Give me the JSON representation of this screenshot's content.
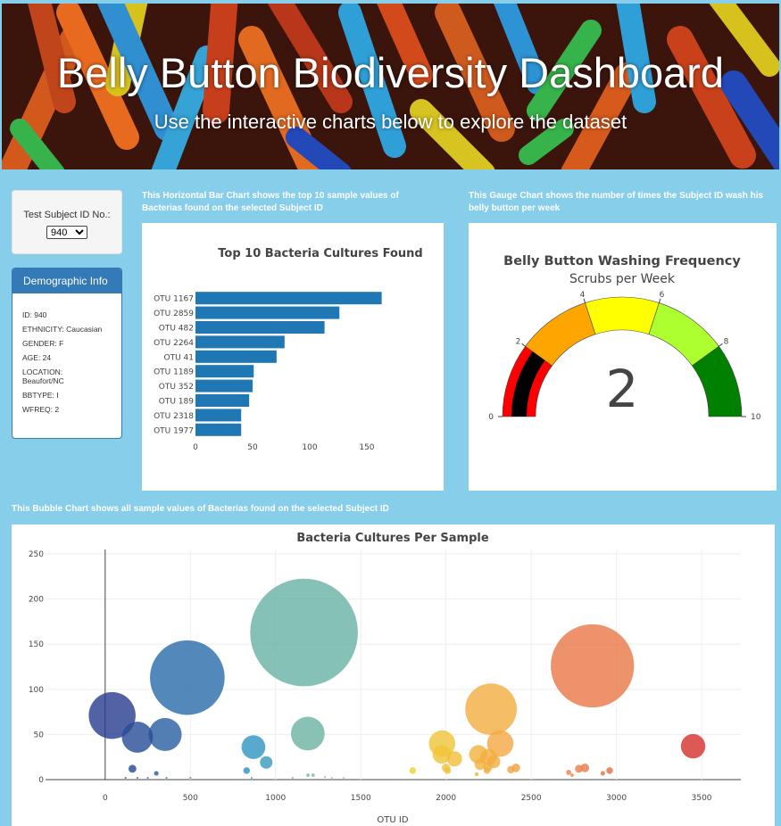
{
  "header": {
    "title": "Belly Button Biodiversity Dashboard",
    "subtitle": "Use the interactive charts below to explore the dataset"
  },
  "selector": {
    "label": "Test Subject ID No.:",
    "selected": "940"
  },
  "demographics": {
    "heading": "Demographic Info",
    "items": [
      "ID: 940",
      "ETHNICITY: Caucasian",
      "GENDER: F",
      "AGE: 24",
      "LOCATION: Beaufort/NC",
      "BBTYPE: I",
      "WFREQ: 2"
    ]
  },
  "captions": {
    "bar": "This Horizontal Bar Chart shows the top 10 sample values of Bacterias found on the selected Subject ID",
    "gauge": "This Gauge Chart shows the number of times the Subject ID wash his belly button per week",
    "bubble": "This Bubble Chart shows all sample values of Bacterias found on the selected Subject ID"
  },
  "colors": {
    "bar": "#1f77b4",
    "panel_primary": "#337ab7",
    "page_bg": "#87ceeb"
  },
  "chart_data": [
    {
      "type": "bar",
      "orientation": "horizontal",
      "title": "Top 10 Bacteria Cultures Found",
      "categories": [
        "OTU 1167",
        "OTU 2859",
        "OTU 482",
        "OTU 2264",
        "OTU 41",
        "OTU 1189",
        "OTU 352",
        "OTU 189",
        "OTU 2318",
        "OTU 1977"
      ],
      "values": [
        163,
        126,
        113,
        78,
        71,
        51,
        50,
        47,
        40,
        40
      ],
      "xticks": [
        0,
        50,
        100,
        150
      ],
      "xlim": [
        0,
        168
      ]
    },
    {
      "type": "gauge",
      "title": "Belly Button Washing Frequency",
      "subtitle": "Scrubs per Week",
      "value": 2,
      "range": [
        0,
        10
      ],
      "ticks": [
        0,
        2,
        4,
        6,
        8,
        10
      ],
      "steps": [
        {
          "range": [
            0,
            2
          ],
          "color": "#ff0000"
        },
        {
          "range": [
            2,
            4
          ],
          "color": "#ffa500"
        },
        {
          "range": [
            4,
            6
          ],
          "color": "#ffff00"
        },
        {
          "range": [
            6,
            8
          ],
          "color": "#adff2f"
        },
        {
          "range": [
            8,
            10
          ],
          "color": "#008000"
        }
      ],
      "bar_color": "#000000"
    },
    {
      "type": "scatter",
      "title": "Bacteria Cultures Per Sample",
      "xlabel": "OTU ID",
      "xticks": [
        0,
        500,
        1000,
        1500,
        2000,
        2500,
        3000,
        3500
      ],
      "yticks": [
        0,
        50,
        100,
        150,
        200,
        250
      ],
      "xlim": [
        -350,
        3730
      ],
      "ylim": [
        0,
        255
      ],
      "points": [
        {
          "x": 41,
          "y": 71
        },
        {
          "x": 189,
          "y": 47
        },
        {
          "x": 352,
          "y": 50
        },
        {
          "x": 482,
          "y": 113
        },
        {
          "x": 1167,
          "y": 163
        },
        {
          "x": 1189,
          "y": 51
        },
        {
          "x": 2859,
          "y": 126
        },
        {
          "x": 2264,
          "y": 78
        },
        {
          "x": 2318,
          "y": 40
        },
        {
          "x": 1977,
          "y": 40
        },
        {
          "x": 870,
          "y": 36
        },
        {
          "x": 945,
          "y": 19
        },
        {
          "x": 3450,
          "y": 37
        },
        {
          "x": 1975,
          "y": 28
        },
        {
          "x": 2050,
          "y": 23
        },
        {
          "x": 2190,
          "y": 28
        },
        {
          "x": 2250,
          "y": 25
        },
        {
          "x": 2280,
          "y": 20
        },
        {
          "x": 2200,
          "y": 17
        },
        {
          "x": 2245,
          "y": 14
        },
        {
          "x": 2240,
          "y": 10
        },
        {
          "x": 2000,
          "y": 13
        },
        {
          "x": 2010,
          "y": 10
        },
        {
          "x": 2410,
          "y": 13
        },
        {
          "x": 2380,
          "y": 11
        },
        {
          "x": 1805,
          "y": 10
        },
        {
          "x": 2780,
          "y": 12
        },
        {
          "x": 2815,
          "y": 13
        },
        {
          "x": 2960,
          "y": 10
        },
        {
          "x": 2720,
          "y": 8
        },
        {
          "x": 2740,
          "y": 5
        },
        {
          "x": 2920,
          "y": 7
        },
        {
          "x": 2180,
          "y": 6
        },
        {
          "x": 160,
          "y": 12
        },
        {
          "x": 300,
          "y": 7
        },
        {
          "x": 830,
          "y": 10
        },
        {
          "x": 1190,
          "y": 5
        },
        {
          "x": 1220,
          "y": 5
        },
        {
          "x": 1290,
          "y": 3
        },
        {
          "x": 120,
          "y": 2
        },
        {
          "x": 190,
          "y": 2
        },
        {
          "x": 250,
          "y": 2
        },
        {
          "x": 360,
          "y": 2
        },
        {
          "x": 500,
          "y": 2
        },
        {
          "x": 860,
          "y": 2
        },
        {
          "x": 1100,
          "y": 2
        },
        {
          "x": 1330,
          "y": 2
        },
        {
          "x": 1400,
          "y": 2
        }
      ]
    }
  ]
}
